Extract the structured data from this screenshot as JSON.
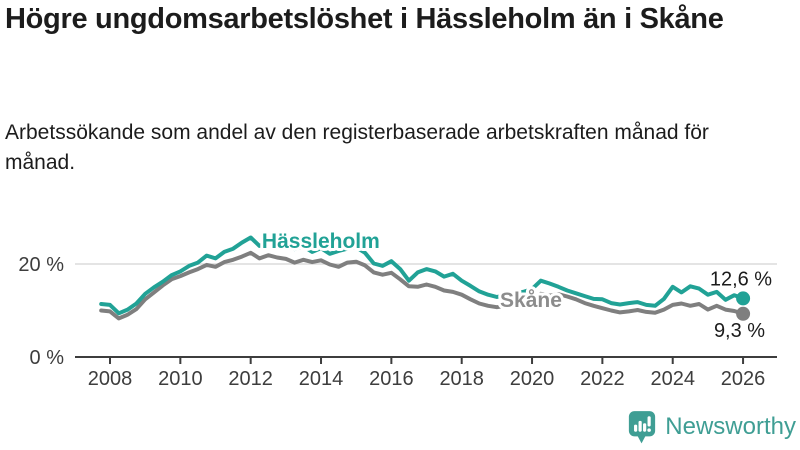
{
  "header": {
    "title": "Högre ungdomsarbetslöshet i Hässleholm än i Skåne",
    "subtitle": "Arbetssökande som andel av den registerbaserade arbetskraften månad för månad."
  },
  "chart_data": {
    "type": "line",
    "title": "Högre ungdomsarbetslöshet i Hässleholm än i Skåne",
    "xlabel": "",
    "ylabel": "Arbetssökande som andel av den registerbaserade arbetskraften",
    "unit": "%",
    "x_start": 2007.75,
    "x_step": 0.25,
    "xlim": [
      2007.5,
      2026.6
    ],
    "ylim": [
      0,
      30
    ],
    "grid": "horizontal-20-only",
    "legend_position": "inline-labels",
    "x_ticks": [
      2008,
      2010,
      2012,
      2014,
      2016,
      2018,
      2020,
      2022,
      2024,
      2026
    ],
    "y_ticks": [
      {
        "value": 0,
        "label": "0 %",
        "grid": false
      },
      {
        "value": 20,
        "label": "20 %",
        "grid": true
      }
    ],
    "series": [
      {
        "name": "Hässleholm",
        "color": "#21a296",
        "label_color": "#21a296",
        "end_label": "12,6 %",
        "end_value": 12.6,
        "end_label_offset": [
          29,
          -13
        ],
        "label_at": {
          "x": 2012.32,
          "y": 23.44
        },
        "values": [
          11.4,
          11.2,
          9.4,
          10.2,
          11.5,
          13.6,
          15.0,
          16.2,
          17.6,
          18.4,
          19.6,
          20.3,
          21.8,
          21.2,
          22.6,
          23.3,
          24.6,
          25.7,
          23.9,
          24.8,
          24.2,
          24.6,
          23.2,
          23.8,
          22.6,
          23.4,
          22.2,
          22.8,
          23.3,
          23.6,
          22.4,
          20.1,
          19.6,
          20.6,
          18.9,
          16.4,
          18.2,
          18.9,
          18.4,
          17.3,
          17.9,
          16.4,
          15.3,
          14.1,
          13.4,
          12.9,
          13.4,
          13.7,
          14.0,
          14.6,
          16.4,
          15.8,
          15.1,
          14.3,
          13.7,
          13.1,
          12.5,
          12.4,
          11.6,
          11.3,
          11.6,
          11.8,
          11.2,
          11.0,
          12.5,
          15.1,
          13.9,
          15.2,
          14.7,
          13.4,
          14.0,
          12.3,
          13.3,
          12.6
        ]
      },
      {
        "name": "Skåne",
        "color": "#7f7f7f",
        "label_color": "#8c8c8c",
        "end_label": "9,3 %",
        "end_value": 9.3,
        "end_label_offset": [
          22,
          23
        ],
        "label_at": {
          "x": 2019.09,
          "y": 10.75
        },
        "values": [
          10.0,
          9.8,
          8.3,
          9.1,
          10.3,
          12.4,
          13.9,
          15.4,
          16.7,
          17.4,
          18.2,
          18.9,
          19.8,
          19.4,
          20.4,
          20.9,
          21.6,
          22.4,
          21.2,
          21.9,
          21.4,
          21.1,
          20.3,
          20.9,
          20.4,
          20.8,
          19.9,
          19.4,
          20.3,
          20.5,
          19.7,
          18.2,
          17.7,
          18.1,
          16.7,
          15.2,
          15.1,
          15.6,
          15.1,
          14.3,
          14.0,
          13.4,
          12.4,
          11.5,
          11.0,
          10.7,
          11.0,
          11.2,
          11.6,
          12.1,
          13.6,
          13.2,
          13.5,
          13.0,
          12.4,
          11.6,
          11.0,
          10.5,
          10.0,
          9.6,
          9.8,
          10.1,
          9.7,
          9.5,
          10.2,
          11.2,
          11.5,
          11.0,
          11.4,
          10.2,
          11.0,
          10.2,
          9.9,
          9.3
        ]
      }
    ]
  },
  "branding": {
    "name": "Newsworthy",
    "color": "#3f9e94"
  }
}
